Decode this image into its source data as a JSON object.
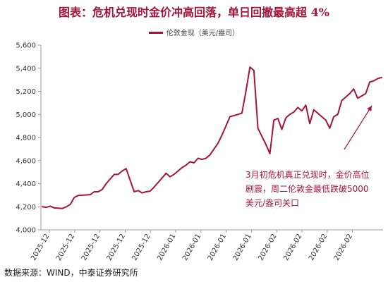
{
  "source": "数据来源：WIND，中泰证券研究所",
  "chart_data": {
    "type": "line",
    "title": "图表：危机兑现时金价冲高回落，单日回撤最高超 4%",
    "xlabel": "",
    "ylabel": "",
    "ylim": [
      4000,
      5600
    ],
    "yticks": [
      "4,000",
      "4,200",
      "4,400",
      "4,600",
      "4,800",
      "5,000",
      "5,200",
      "5,400",
      "5,600"
    ],
    "xtick_labels": [
      "2025-12",
      "2025-12",
      "2025-12",
      "2025-12",
      "2025-12",
      "2026-01",
      "2026-01",
      "2026-01",
      "2026-01",
      "2026-02",
      "2026-02",
      "2026-02",
      "2026-02"
    ],
    "grid": false,
    "legend": "top",
    "series": [
      {
        "name": "伦敦金现（美元/盎司）",
        "color": "#a5143a",
        "values": [
          4200,
          4195,
          4205,
          4190,
          4188,
          4185,
          4200,
          4220,
          4280,
          4298,
          4300,
          4302,
          4305,
          4330,
          4330,
          4350,
          4400,
          4440,
          4480,
          4480,
          4510,
          4530,
          4430,
          4330,
          4340,
          4320,
          4330,
          4335,
          4370,
          4410,
          4450,
          4490,
          4460,
          4480,
          4510,
          4540,
          4560,
          4590,
          4580,
          4620,
          4610,
          4620,
          4650,
          4700,
          4750,
          4820,
          4900,
          4980,
          4990,
          5000,
          5010,
          5200,
          5410,
          5380,
          4880,
          4810,
          4740,
          4660,
          4950,
          4965,
          4870,
          4970,
          5000,
          5020,
          5060,
          5030,
          5080,
          4920,
          5040,
          5010,
          4980,
          4950,
          4880,
          4980,
          5000,
          5120,
          5150,
          5180,
          5220,
          5140,
          5160,
          5180,
          5280,
          5290,
          5310,
          5320
        ]
      }
    ],
    "annotations": [
      {
        "text": "3月初危机真正兑现时，金价高位剧震，周二伦敦金最低跌破5000美元/盎司关口"
      }
    ]
  }
}
